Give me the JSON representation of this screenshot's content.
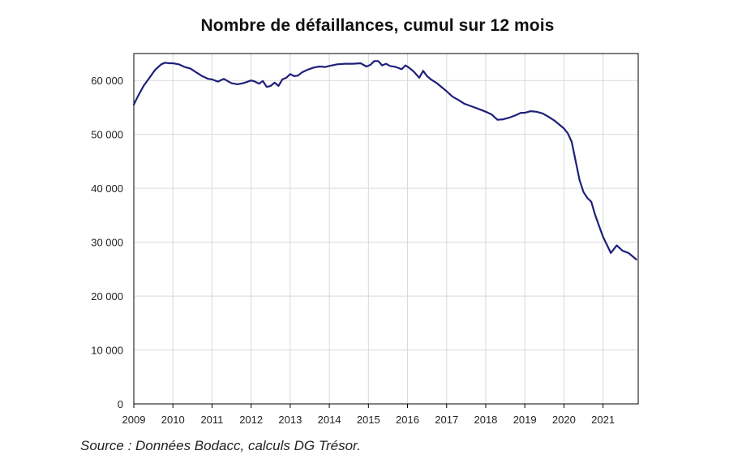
{
  "chart_data": {
    "type": "line",
    "title": "Nombre de défaillances, cumul sur 12 mois",
    "xlabel": "",
    "ylabel": "",
    "xlim": [
      2009,
      2021.9
    ],
    "ylim": [
      0,
      65000
    ],
    "grid": true,
    "x_ticks": [
      2009,
      2010,
      2011,
      2012,
      2013,
      2014,
      2015,
      2016,
      2017,
      2018,
      2019,
      2020,
      2021
    ],
    "x_tick_labels": [
      "2009",
      "2010",
      "2011",
      "2012",
      "2013",
      "2014",
      "2015",
      "2016",
      "2017",
      "2018",
      "2019",
      "2020",
      "2021"
    ],
    "y_ticks": [
      0,
      10000,
      20000,
      30000,
      40000,
      50000,
      60000
    ],
    "y_tick_labels": [
      "0",
      "10 000",
      "20 000",
      "30 000",
      "40 000",
      "50 000",
      "60 000"
    ],
    "series": [
      {
        "color": "#1f1f7a",
        "x": [
          2009.0,
          2009.1,
          2009.25,
          2009.4,
          2009.55,
          2009.7,
          2009.8,
          2009.9,
          2010.0,
          2010.15,
          2010.3,
          2010.45,
          2010.6,
          2010.75,
          2010.9,
          2011.0,
          2011.15,
          2011.3,
          2011.4,
          2011.5,
          2011.65,
          2011.8,
          2012.0,
          2012.1,
          2012.2,
          2012.3,
          2012.4,
          2012.5,
          2012.6,
          2012.7,
          2012.8,
          2012.9,
          2013.0,
          2013.1,
          2013.2,
          2013.3,
          2013.45,
          2013.6,
          2013.75,
          2013.9,
          2014.0,
          2014.2,
          2014.4,
          2014.6,
          2014.8,
          2014.95,
          2015.05,
          2015.15,
          2015.25,
          2015.35,
          2015.45,
          2015.55,
          2015.7,
          2015.85,
          2015.95,
          2016.05,
          2016.15,
          2016.3,
          2016.4,
          2016.5,
          2016.6,
          2016.75,
          2016.9,
          2017.0,
          2017.15,
          2017.3,
          2017.45,
          2017.6,
          2017.75,
          2017.9,
          2018.0,
          2018.15,
          2018.3,
          2018.45,
          2018.6,
          2018.75,
          2018.9,
          2019.0,
          2019.15,
          2019.3,
          2019.45,
          2019.6,
          2019.75,
          2019.9,
          2020.0,
          2020.1,
          2020.2,
          2020.3,
          2020.4,
          2020.5,
          2020.6,
          2020.7,
          2020.8,
          2020.9,
          2021.0,
          2021.1,
          2021.2,
          2021.35,
          2021.5,
          2021.65,
          2021.75,
          2021.85
        ],
        "values": [
          55500,
          57000,
          59000,
          60500,
          62000,
          63000,
          63300,
          63200,
          63200,
          63000,
          62500,
          62200,
          61500,
          60800,
          60300,
          60200,
          59800,
          60300,
          59900,
          59500,
          59300,
          59500,
          60000,
          59800,
          59400,
          59900,
          58800,
          59000,
          59600,
          59000,
          60200,
          60500,
          61200,
          60800,
          60900,
          61500,
          62000,
          62400,
          62600,
          62500,
          62700,
          63000,
          63100,
          63100,
          63200,
          62600,
          62900,
          63600,
          63600,
          62800,
          63100,
          62700,
          62500,
          62100,
          62800,
          62300,
          61700,
          60500,
          61800,
          60800,
          60200,
          59500,
          58600,
          58000,
          57000,
          56400,
          55700,
          55300,
          54900,
          54500,
          54200,
          53700,
          52700,
          52800,
          53100,
          53500,
          54000,
          54000,
          54300,
          54200,
          53900,
          53300,
          52600,
          51700,
          51100,
          50200,
          48600,
          45000,
          41500,
          39300,
          38200,
          37500,
          35000,
          33000,
          31000,
          29500,
          28000,
          29400,
          28400,
          28000,
          27400,
          26800
        ]
      }
    ]
  },
  "source": "Source : Données Bodacc, calculs DG Trésor."
}
